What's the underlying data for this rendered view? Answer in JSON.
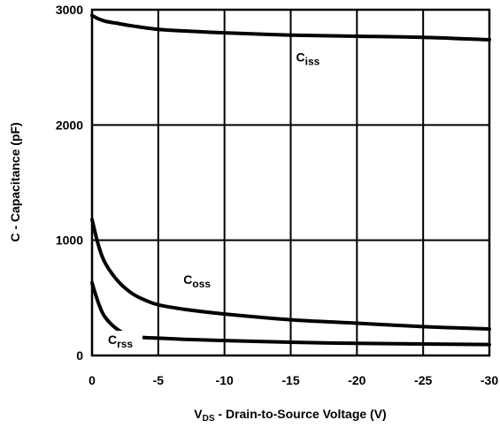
{
  "chart_data": {
    "type": "line",
    "xlabel": "V_DS - Drain-to-Source Voltage (V)",
    "xlabel_parts": {
      "main": "V",
      "sub": "DS",
      "rest": " - Drain-to-Source Voltage (V)"
    },
    "ylabel": "C - Capacitance (pF)",
    "xlim": [
      0,
      -30
    ],
    "ylim": [
      0,
      3000
    ],
    "x_ticks": [
      0,
      -5,
      -10,
      -15,
      -20,
      -25,
      -30
    ],
    "x_tick_labels": [
      "0",
      "-5",
      "-10",
      "-15",
      "-20",
      "-25",
      "-30"
    ],
    "y_ticks": [
      0,
      1000,
      2000,
      3000
    ],
    "y_tick_labels": [
      "0",
      "1000",
      "2000",
      "3000"
    ],
    "grid": true,
    "series": [
      {
        "name": "Ciss",
        "label_main": "C",
        "label_sub": "iss",
        "x": [
          0,
          -0.5,
          -1,
          -2,
          -3,
          -5,
          -8,
          -10,
          -15,
          -20,
          -25,
          -30
        ],
        "y": [
          2950,
          2920,
          2900,
          2880,
          2860,
          2830,
          2810,
          2800,
          2780,
          2770,
          2760,
          2740
        ]
      },
      {
        "name": "Coss",
        "label_main": "C",
        "label_sub": "oss",
        "x": [
          0,
          -0.5,
          -1,
          -2,
          -3,
          -4,
          -5,
          -7,
          -10,
          -15,
          -20,
          -25,
          -30
        ],
        "y": [
          1180,
          950,
          800,
          640,
          540,
          480,
          440,
          400,
          360,
          310,
          280,
          250,
          230
        ]
      },
      {
        "name": "Crss",
        "label_main": "C",
        "label_sub": "rss",
        "x": [
          0,
          -0.5,
          -1,
          -2,
          -3,
          -4,
          -5,
          -7,
          -10,
          -15,
          -20,
          -25,
          -30
        ],
        "y": [
          630,
          450,
          330,
          220,
          170,
          155,
          150,
          140,
          130,
          115,
          105,
          100,
          95
        ]
      }
    ],
    "annotations": [
      {
        "series": "Ciss",
        "x": -15.4,
        "y": 2550
      },
      {
        "series": "Coss",
        "x": -6.9,
        "y": 620
      },
      {
        "series": "Crss",
        "x": -1.2,
        "y": 100
      }
    ]
  }
}
